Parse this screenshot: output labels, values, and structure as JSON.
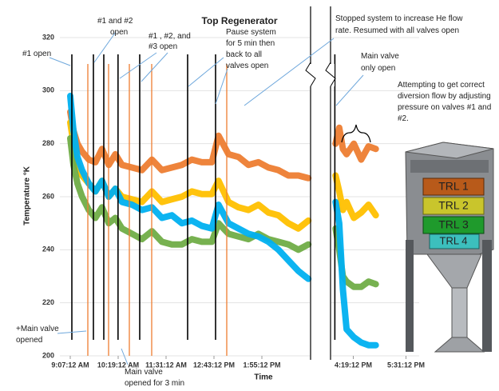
{
  "chart_data": {
    "type": "line",
    "title": "Top Regenerator",
    "xlabel": "Time",
    "ylabel": "Temperature °K",
    "x": [
      547.2,
      552,
      558,
      565,
      575,
      585,
      595,
      605,
      615,
      625,
      640,
      655,
      670,
      685,
      700,
      715,
      730,
      745,
      760,
      770,
      785,
      800,
      815,
      830,
      845,
      860,
      875,
      890,
      905,
      930,
      955,
      960,
      965,
      970,
      980,
      990,
      1000,
      1010
    ],
    "series": [
      {
        "color": "#ed7d31",
        "values": [
          292,
          285,
          280,
          277,
          274,
          273,
          278,
          272,
          276,
          272,
          271,
          270,
          274,
          270,
          271,
          272,
          274,
          273,
          273,
          283,
          276,
          275,
          272,
          273,
          271,
          270,
          268,
          268,
          267,
          null,
          280,
          286,
          278,
          276,
          280,
          274,
          279,
          278
        ]
      },
      {
        "color": "#ffc000",
        "values": [
          288,
          280,
          272,
          268,
          265,
          262,
          266,
          260,
          263,
          260,
          259,
          258,
          262,
          258,
          259,
          260,
          262,
          261,
          261,
          266,
          258,
          256,
          255,
          257,
          254,
          253,
          250,
          248,
          251,
          null,
          268,
          262,
          255,
          258,
          252,
          254,
          257,
          253
        ]
      },
      {
        "color": "#70ad47",
        "values": [
          282,
          272,
          265,
          260,
          255,
          252,
          256,
          250,
          252,
          248,
          246,
          244,
          247,
          243,
          242,
          242,
          244,
          243,
          243,
          250,
          246,
          245,
          244,
          246,
          244,
          243,
          242,
          240,
          242,
          null,
          248,
          240,
          230,
          228,
          226,
          226,
          228,
          227
        ]
      },
      {
        "color": "#00b0f0",
        "values": [
          298,
          285,
          275,
          270,
          265,
          262,
          266,
          260,
          263,
          258,
          257,
          255,
          256,
          252,
          253,
          250,
          251,
          249,
          248,
          257,
          250,
          248,
          246,
          245,
          243,
          240,
          236,
          232,
          229,
          null,
          258,
          250,
          225,
          210,
          207,
          205,
          204,
          204
        ]
      }
    ],
    "xlim": [
      531.6,
      1069.2
    ],
    "xbreak": [
      907.2,
      949.2
    ],
    "xticks": [
      {
        "value": 547.2,
        "label": "9:07:12 AM"
      },
      {
        "value": 619.2,
        "label": "10:19:12 AM"
      },
      {
        "value": 691.2,
        "label": "11:31:12 AM"
      },
      {
        "value": 763.2,
        "label": "12:43:12 PM"
      },
      {
        "value": 835.2,
        "label": "1:55:12 PM"
      },
      {
        "value": 979.2,
        "label": "4:19:12 PM"
      },
      {
        "value": 1051.2,
        "label": "5:31:12 PM"
      }
    ],
    "ylim": [
      200,
      320
    ],
    "yticks": [
      200,
      220,
      240,
      260,
      280,
      300,
      320
    ],
    "grid": true,
    "event_lines": [
      {
        "color": "#000000",
        "x": [
          549.6,
          582,
          597.6,
          619,
          651.6,
          723.6,
          765.6,
          954
        ]
      },
      {
        "color": "#ed7d31",
        "x": [
          573.6,
          604.8,
          636,
          669.6,
          782.4
        ]
      }
    ],
    "annotations": [
      {
        "lines": [
          "#1 open"
        ]
      },
      {
        "lines": [
          "#1 and #2",
          "open"
        ]
      },
      {
        "lines": [
          "#1 , #2, and",
          "#3 open"
        ]
      },
      {
        "lines": [
          "Pause  system",
          "for 5 min then",
          "back to all",
          "valves open"
        ]
      },
      {
        "lines": [
          "Stopped system to increase He flow",
          "rate. Resumed with all valves open"
        ]
      },
      {
        "lines": [
          "Main valve",
          "only open"
        ]
      },
      {
        "lines": [
          "Attempting to get correct",
          "diversion flow by adjusting",
          "pressure on valves #1 and",
          "#2."
        ]
      },
      {
        "lines": [
          "+Main valve",
          "opened"
        ]
      },
      {
        "lines": [
          "Main valve",
          "opened for 3 min"
        ]
      }
    ],
    "figure_labels": [
      "TRL 1",
      "TRL 2",
      "TRL 3",
      "TRL 4"
    ]
  }
}
